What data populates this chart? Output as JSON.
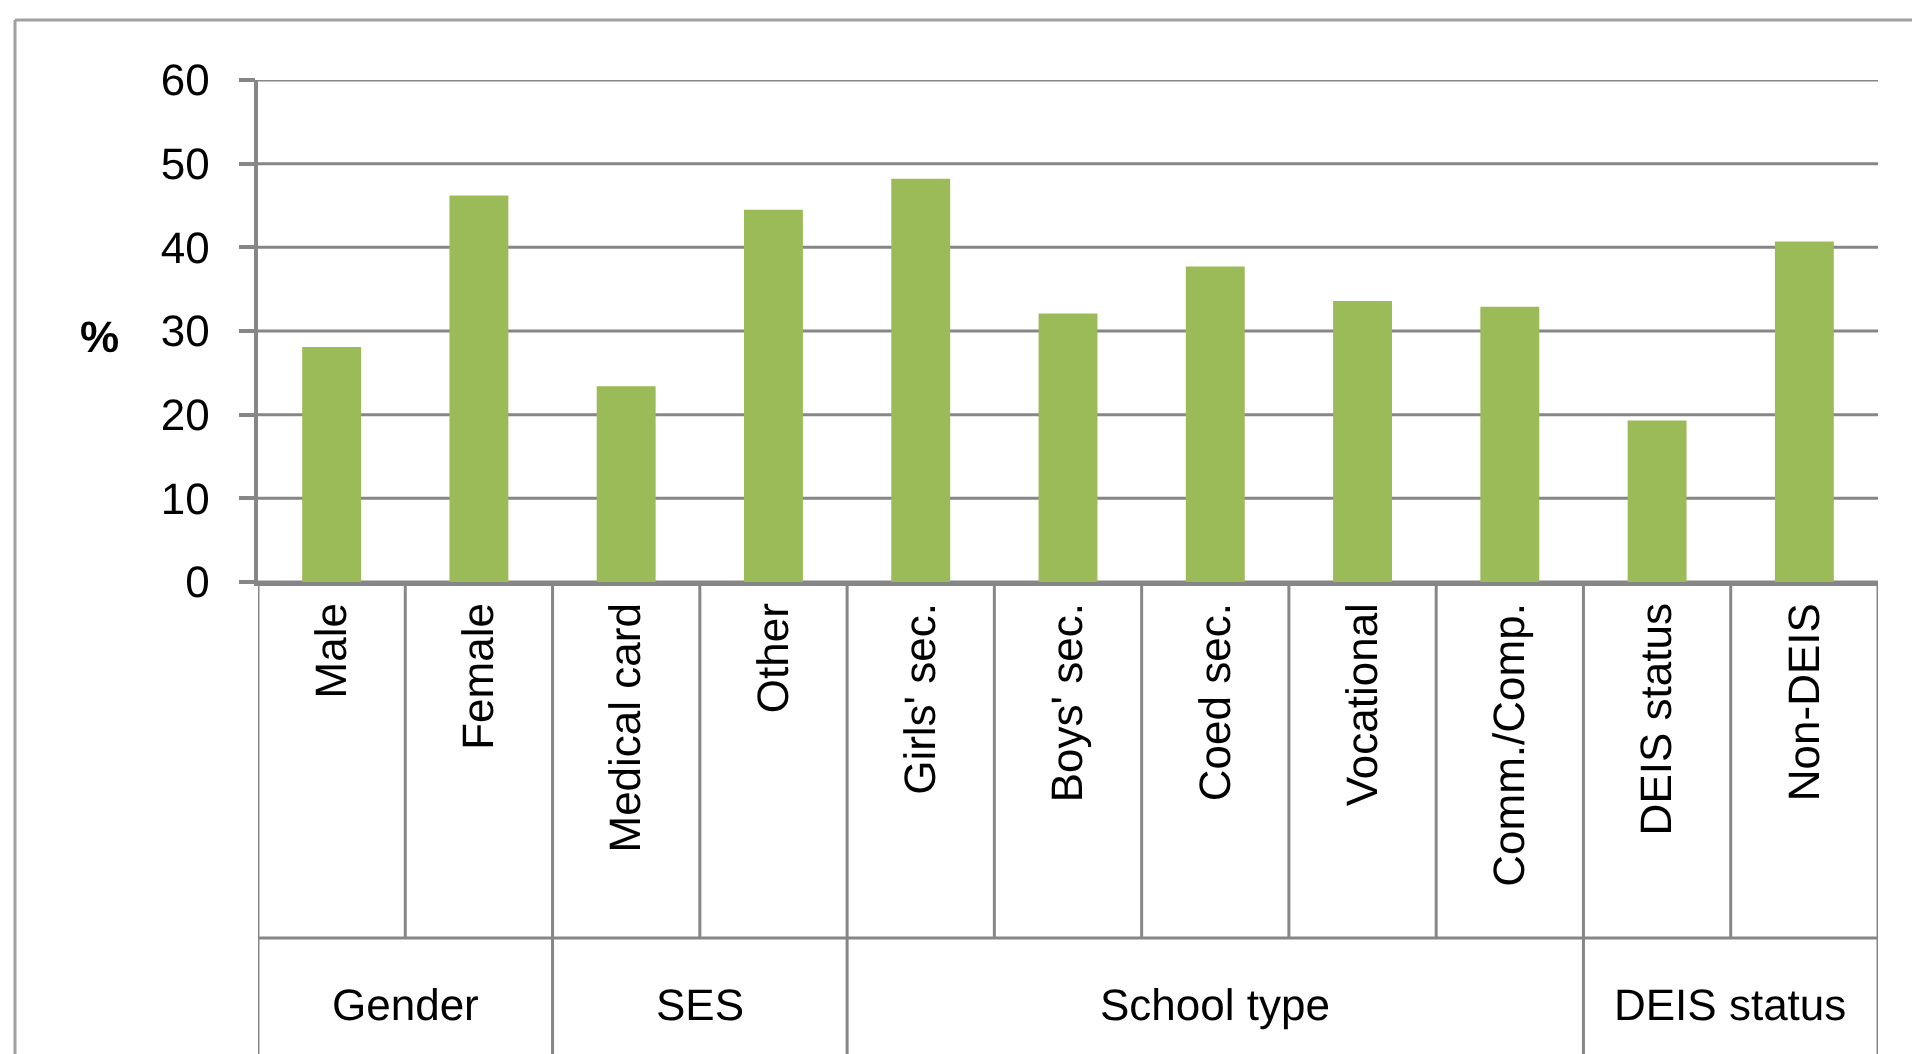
{
  "chart_data": {
    "type": "bar",
    "ylabel": "%",
    "categories": [
      "Male",
      "Female",
      "Medical card",
      "Other",
      "Girls' sec.",
      "Boys' sec.",
      "Coed sec.",
      "Vocational",
      "Comm./Comp.",
      "DEIS status",
      "Non-DEIS"
    ],
    "values": [
      28.1,
      46.2,
      23.4,
      44.5,
      48.2,
      32.1,
      37.7,
      33.6,
      32.9,
      19.3,
      40.7
    ],
    "color": "#9bbb59",
    "ylim": [
      0,
      60
    ],
    "yticks": [
      0,
      10,
      20,
      30,
      40,
      50,
      60
    ],
    "grid": "y",
    "annotations": [
      "Gender",
      "SES",
      "School type",
      "DEIS status"
    ]
  }
}
